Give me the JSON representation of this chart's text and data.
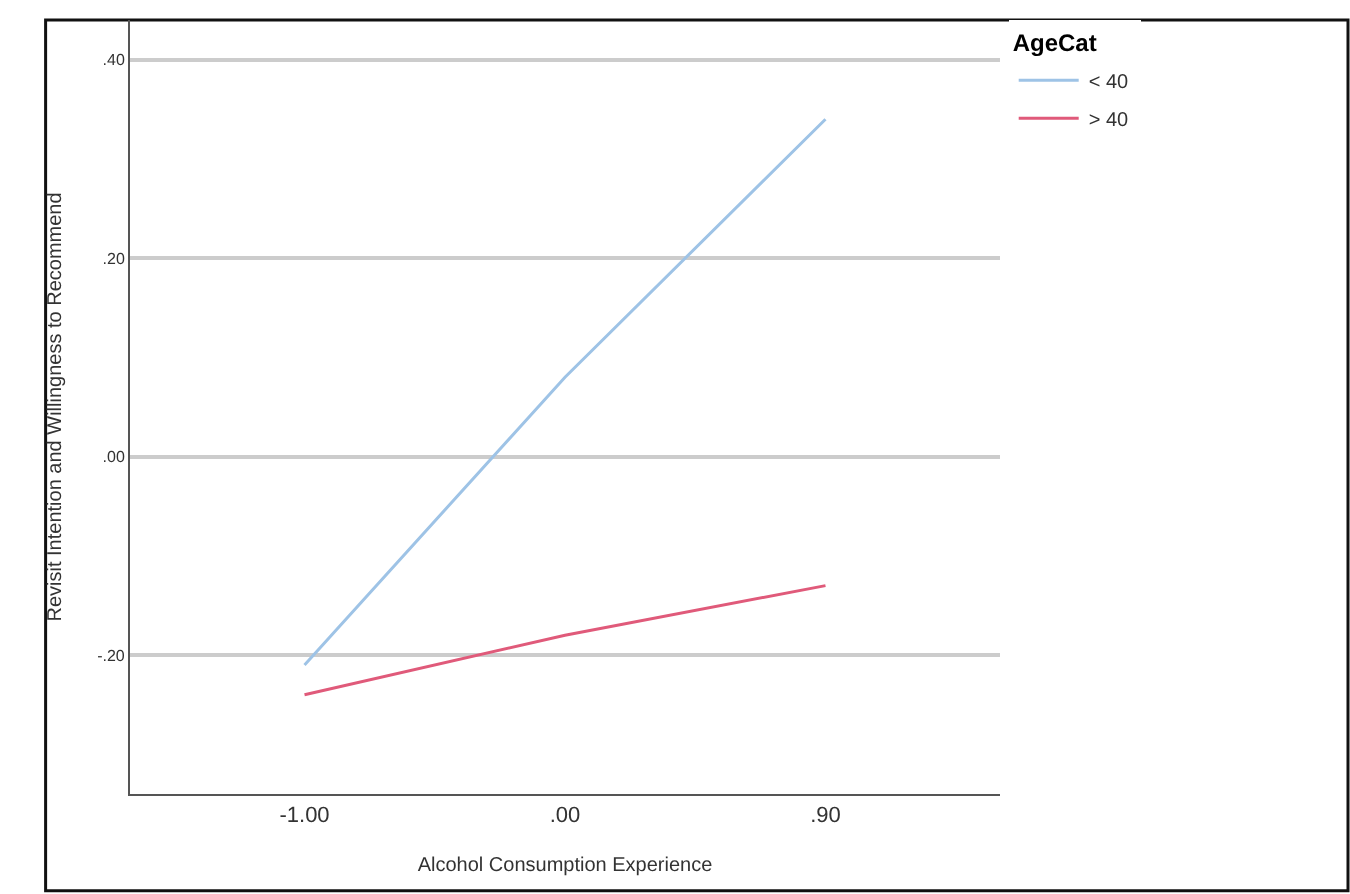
{
  "chart_data": {
    "type": "line",
    "xlabel": "Alcohol Consumption Experience",
    "ylabel": "Revisit Intention and Willingness to Recommend",
    "legend_title": "AgeCat",
    "categories": [
      "-1.00",
      ".00",
      ".90"
    ],
    "series": [
      {
        "name": "< 40",
        "color": "#9ec3e6",
        "values": [
          -0.21,
          0.08,
          0.34
        ]
      },
      {
        "name": "> 40",
        "color": "#e05a7a",
        "values": [
          -0.24,
          -0.18,
          -0.13
        ]
      }
    ],
    "ylim": [
      -0.34,
      0.44
    ],
    "yticks": [
      {
        "value": -0.2,
        "label": "-.20"
      },
      {
        "value": 0,
        "label": ".00"
      },
      {
        "value": 0.2,
        "label": ".20"
      },
      {
        "value": 0.4,
        "label": ".40"
      }
    ],
    "grid": "y",
    "legend": "top right",
    "marker": "none",
    "line_style": "solid"
  }
}
